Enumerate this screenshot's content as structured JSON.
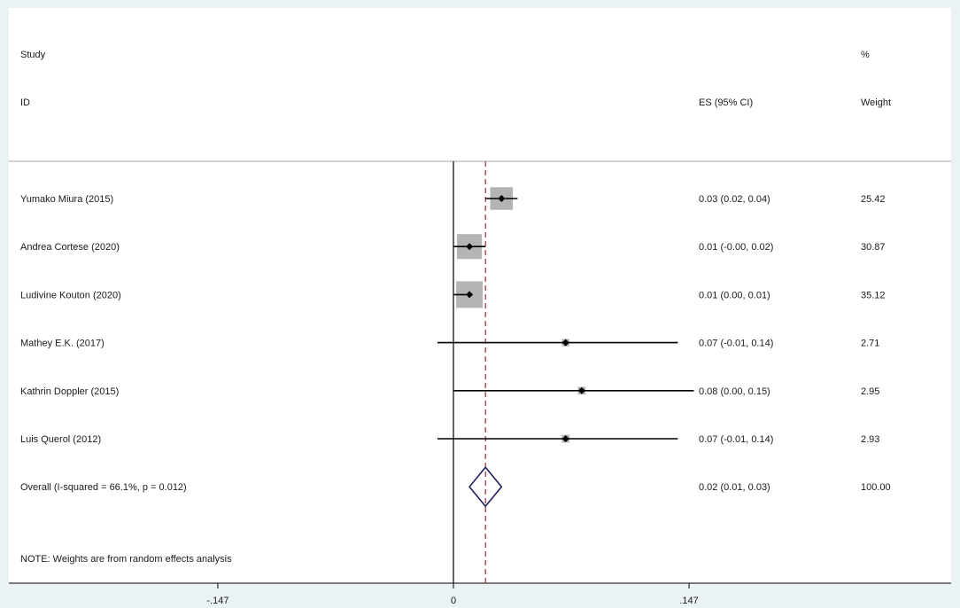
{
  "header": {
    "study_line1": "Study",
    "study_line2": "ID",
    "es_label": "ES (95% CI)",
    "weight_line1": "%",
    "weight_line2": "Weight"
  },
  "note": "NOTE: Weights are from random effects analysis",
  "colors": {
    "background": "#eaf2f3",
    "panel": "#ffffff",
    "box": "#b4b4b4",
    "marker": "#000000",
    "overall_diamond": "#1f1f5e",
    "overall_line": "#9b2d3a"
  },
  "chart_data": {
    "type": "forest",
    "xlim": [
      -0.2,
      0.21
    ],
    "null_line": 0,
    "x_ticks": [
      {
        "value": -0.147,
        "label": "-.147"
      },
      {
        "value": 0,
        "label": "0"
      },
      {
        "value": 0.147,
        "label": ".147"
      }
    ],
    "studies": [
      {
        "label": "Yumako Miura (2015)",
        "es": 0.03,
        "lower": 0.02,
        "upper": 0.04,
        "ci_text": "0.03 (0.02, 0.04)",
        "weight": 25.42,
        "weight_text": "25.42"
      },
      {
        "label": "Andrea Cortese (2020)",
        "es": 0.01,
        "lower": -0.0,
        "upper": 0.02,
        "ci_text": "0.01 (-0.00, 0.02)",
        "weight": 30.87,
        "weight_text": "30.87"
      },
      {
        "label": "Ludivine Kouton (2020)",
        "es": 0.01,
        "lower": 0.0,
        "upper": 0.01,
        "ci_text": "0.01 (0.00, 0.01)",
        "weight": 35.12,
        "weight_text": "35.12"
      },
      {
        "label": "Mathey E.K. (2017)",
        "es": 0.07,
        "lower": -0.01,
        "upper": 0.14,
        "ci_text": "0.07 (-0.01, 0.14)",
        "weight": 2.71,
        "weight_text": "2.71"
      },
      {
        "label": "Kathrin Doppler (2015)",
        "es": 0.08,
        "lower": 0.0,
        "upper": 0.15,
        "ci_text": "0.08 (0.00, 0.15)",
        "weight": 2.95,
        "weight_text": "2.95"
      },
      {
        "label": "Luis Querol (2012)",
        "es": 0.07,
        "lower": -0.01,
        "upper": 0.14,
        "ci_text": "0.07 (-0.01, 0.14)",
        "weight": 2.93,
        "weight_text": "2.93"
      }
    ],
    "overall": {
      "label": "Overall  (I-squared = 66.1%, p = 0.012)",
      "es": 0.02,
      "lower": 0.01,
      "upper": 0.03,
      "ci_text": "0.02 (0.01, 0.03)",
      "weight": 100.0,
      "weight_text": "100.00"
    }
  }
}
